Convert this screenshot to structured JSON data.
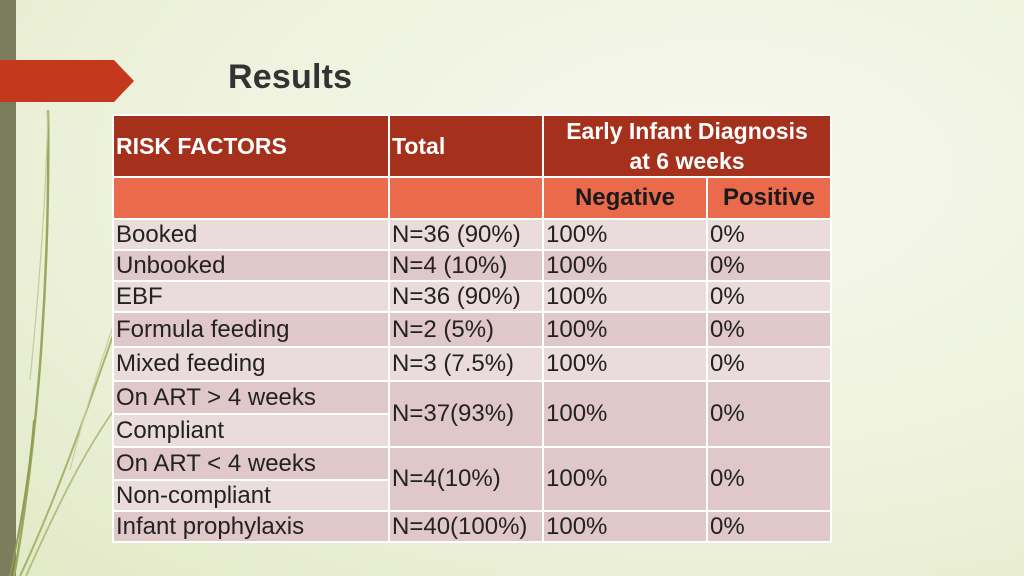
{
  "slide": {
    "title": "Results"
  },
  "table": {
    "header": {
      "risk_factors": "RISK FACTORS",
      "total": "Total",
      "eid_line1": "Early Infant Diagnosis",
      "eid_line2": "at 6 weeks",
      "negative": "Negative",
      "positive": "Positive"
    },
    "rows": [
      {
        "factor": "Booked",
        "total": "N=36 (90%)",
        "negative": "100%",
        "positive": "0%"
      },
      {
        "factor": "Unbooked",
        "total": "N=4 (10%)",
        "negative": "100%",
        "positive": "0%"
      },
      {
        "factor": "EBF",
        "total": "N=36 (90%)",
        "negative": "100%",
        "positive": "0%"
      },
      {
        "factor": "Formula feeding",
        "total": "N=2 (5%)",
        "negative": "100%",
        "positive": "0%"
      },
      {
        "factor": "Mixed feeding",
        "total": "N=3 (7.5%)",
        "negative": "100%",
        "positive": "0%"
      }
    ],
    "group1": {
      "factor_a": "On ART > 4 weeks",
      "factor_b": "Compliant",
      "total": "N=37(93%)",
      "negative": "100%",
      "positive": "0%"
    },
    "group2": {
      "factor_a": "On ART < 4 weeks",
      "factor_b": "Non-compliant",
      "total": "N=4(10%)",
      "negative": "100%",
      "positive": "0%"
    },
    "last_row": {
      "factor": "Infant prophylaxis",
      "total": "N=40(100%)",
      "negative": "100%",
      "positive": "0%"
    }
  },
  "colors": {
    "header": "#a5301c",
    "subheader": "#ea6a4c",
    "row_light": "#eadcdc",
    "row_dark": "#e0c8ca",
    "accent_arrow": "#c4391d"
  }
}
